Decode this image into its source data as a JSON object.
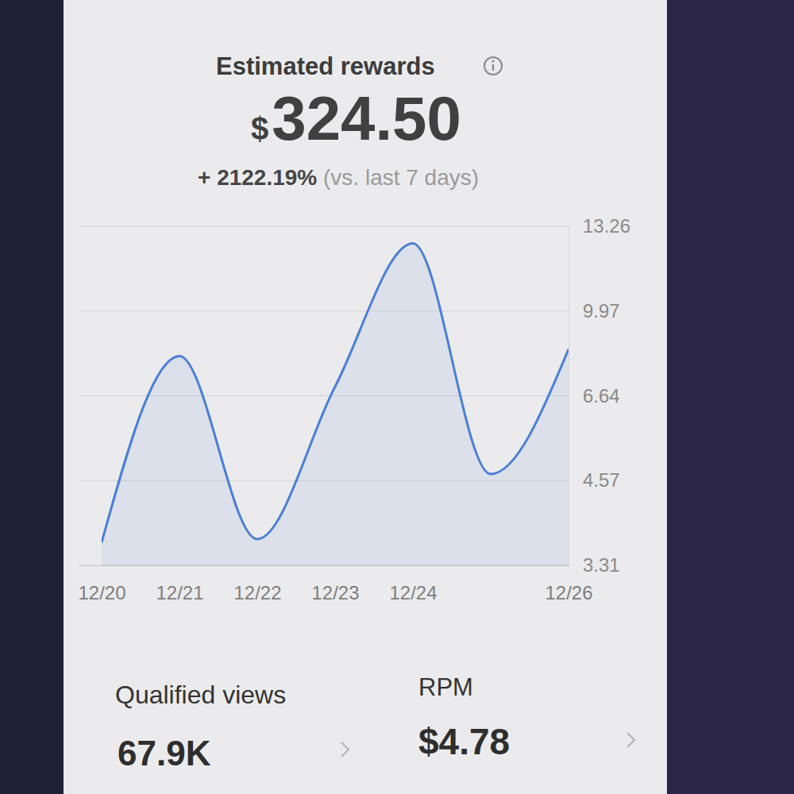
{
  "chart_data": {
    "type": "line",
    "title": "Estimated rewards",
    "subtitle": "+ 2122.19% (vs. last 7 days)",
    "annotations": [
      "$324.50",
      "Qualified views",
      "67.9K",
      "RPM",
      "$4.78"
    ],
    "categories": [
      "12/20",
      "12/21",
      "12/22",
      "12/23",
      "12/24",
      null,
      "12/26"
    ],
    "values": [
      3.65,
      8.2,
      3.7,
      7.0,
      12.6,
      4.73,
      8.47
    ],
    "color": "#4a7fd6",
    "ylim": [
      3.31,
      13.26
    ],
    "yticks": [
      3.31,
      4.57,
      6.64,
      9.97,
      13.26
    ],
    "grid": true
  }
}
